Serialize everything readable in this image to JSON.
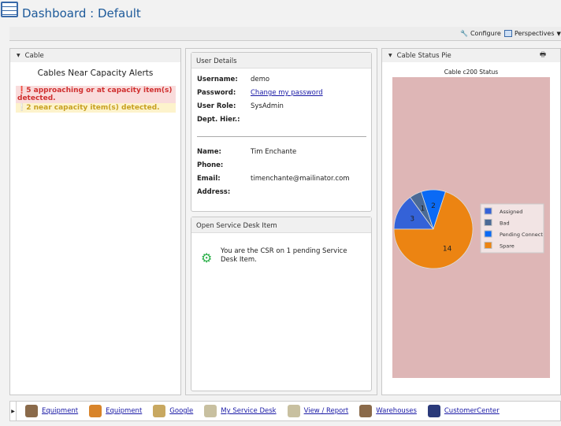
{
  "header": {
    "title": "Dashboard : Default"
  },
  "toolbar": {
    "configure": "Configure",
    "perspectives": "Perspectives"
  },
  "cable_panel": {
    "title": "Cable",
    "heading": "Cables Near Capacity Alerts",
    "alert_red": "5 approaching or at capacity item(s) detected.",
    "alert_yellow": "2 near capacity item(s) detected."
  },
  "user_details": {
    "title": "User Details",
    "fields": [
      {
        "label": "Username:",
        "value": "demo"
      },
      {
        "label": "Password:",
        "value": "Change my password"
      },
      {
        "label": "User Role:",
        "value": "SysAdmin"
      },
      {
        "label": "Dept. Hier.:",
        "value": ""
      },
      {
        "label": "Name:",
        "value": "Tim Enchante"
      },
      {
        "label": "Phone:",
        "value": ""
      },
      {
        "label": "Email:",
        "value": "timenchante@mailinator.com"
      },
      {
        "label": "Address:",
        "value": ""
      }
    ]
  },
  "service_desk": {
    "title": "Open Service Desk Item",
    "message": "You are the CSR on 1 pending Service Desk Item."
  },
  "pie_panel": {
    "title": "Cable Status Pie"
  },
  "chart_data": {
    "type": "pie",
    "title": "Cable c200 Status",
    "legend": "right",
    "slices": [
      {
        "name": "Assigned",
        "value": 3,
        "color": "#3462d8"
      },
      {
        "name": "Bad",
        "value": 1,
        "color": "#4a6a96"
      },
      {
        "name": "Pending Connect",
        "value": 2,
        "color": "#0a6af5"
      },
      {
        "name": "Spare",
        "value": 14,
        "color": "#ec8412"
      }
    ],
    "background": "#deb6b6"
  },
  "bottom_links": [
    {
      "label": "Equipment",
      "icon": "box-icon",
      "color": "#8a6a4a"
    },
    {
      "label": "Equipment",
      "icon": "hierarchy-icon",
      "color": "#d8842a"
    },
    {
      "label": "Google",
      "icon": "chain-link-icon",
      "color": "#c8a860"
    },
    {
      "label": "My Service Desk",
      "icon": "list-icon",
      "color": "#c8c0a0"
    },
    {
      "label": "View / Report",
      "icon": "list-icon",
      "color": "#c8c0a0"
    },
    {
      "label": "Warehouses",
      "icon": "box-icon",
      "color": "#8a6a4a"
    },
    {
      "label": "CustomerCenter",
      "icon": "chain-link-icon",
      "color": "#2a3a7a"
    }
  ]
}
